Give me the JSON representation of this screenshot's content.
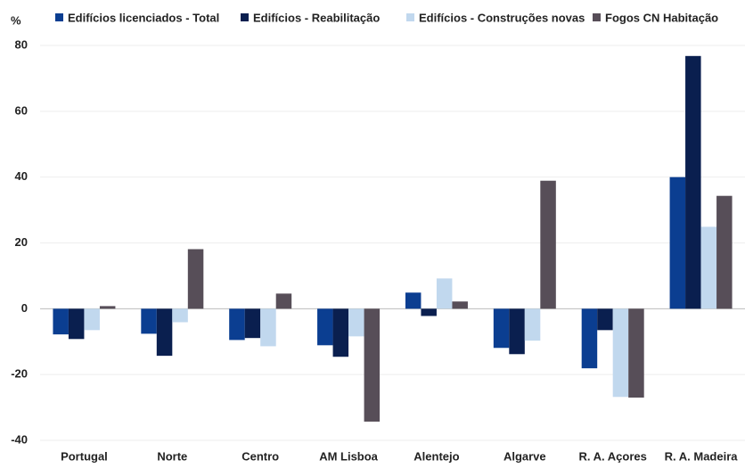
{
  "chart_data": {
    "type": "bar",
    "y_label": "%",
    "categories": [
      "Portugal",
      "Norte",
      "Centro",
      "AM Lisboa",
      "Alentejo",
      "Algarve",
      "R. A. Açores",
      "R. A. Madeira"
    ],
    "series": [
      {
        "name": "Edifícios licenciados - Total",
        "color": "#0b3e91",
        "values": [
          -7.8,
          -7.6,
          -9.5,
          -11.1,
          4.9,
          -11.9,
          -18.1,
          40
        ]
      },
      {
        "name": "Edifícios - Reabilitação",
        "color": "#0a1f4f",
        "values": [
          -9.2,
          -14.3,
          -8.9,
          -14.6,
          -2.2,
          -13.8,
          -6.5,
          76.8
        ]
      },
      {
        "name": "Edifícios - Construções novas",
        "color": "#c1d8ee",
        "values": [
          -6.5,
          -4.1,
          -11.4,
          -8.4,
          9.2,
          -9.7,
          -26.8,
          24.9
        ]
      },
      {
        "name": "Fogos CN Habitação",
        "color": "#574e58",
        "values": [
          0.8,
          18.1,
          4.6,
          -34.3,
          2.2,
          38.9,
          -27.0,
          34.3
        ]
      }
    ],
    "ylim": [
      -40,
      80
    ],
    "yticks": [
      -40,
      -20,
      0,
      20,
      40,
      60,
      80
    ],
    "grid": true
  }
}
